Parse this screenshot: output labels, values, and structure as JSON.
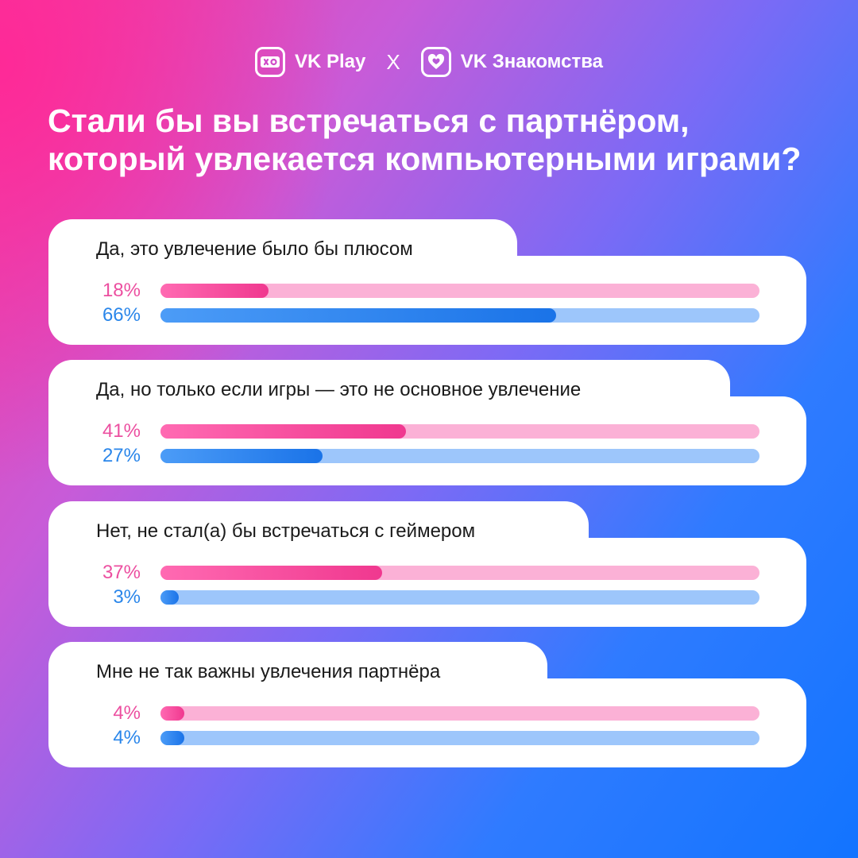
{
  "header": {
    "brand_left": "VK Play",
    "separator": "X",
    "brand_right": "VK Знакомства",
    "icons": [
      "vk-play-gamepad-icon",
      "vk-dating-heart-icon"
    ]
  },
  "colors": {
    "women_accent": "#ec4fa0",
    "men_accent": "#2a86ea",
    "background_start": "#f43fa3",
    "background_end": "#1274ff"
  },
  "chart_data": {
    "type": "bar",
    "title_lines": [
      "Стали бы вы встречаться с партнёром,",
      "который увлекается компьютерными играми?"
    ],
    "categories": [
      "Да, это увлечение было бы плюсом",
      "Да, но только если игры — это не основное увлечение",
      "Нет, не стал(а) бы встречаться с геймером",
      "Мне не так важны увлечения партнёра"
    ],
    "series": [
      {
        "color": "#ec4fa0",
        "values": [
          18,
          41,
          37,
          4
        ]
      },
      {
        "color": "#2a86ea",
        "values": [
          66,
          27,
          3,
          4
        ]
      }
    ],
    "value_labels": [
      [
        "18%",
        "41%",
        "37%",
        "4%"
      ],
      [
        "66%",
        "27%",
        "3%",
        "4%"
      ]
    ],
    "unit": "%",
    "xlim": [
      0,
      100
    ],
    "orientation": "horizontal",
    "grid": false,
    "legend": "none"
  }
}
